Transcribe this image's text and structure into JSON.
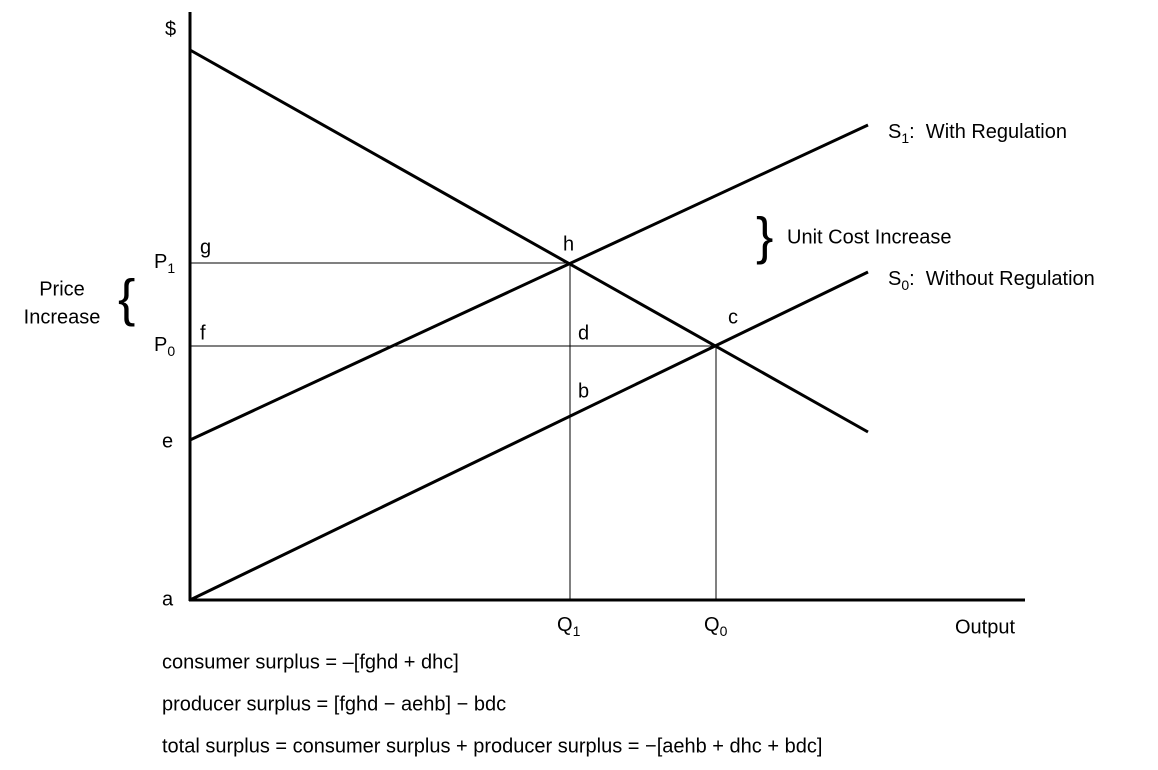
{
  "axis": {
    "y_label": "$",
    "x_label": "Output",
    "origin": "a"
  },
  "points": {
    "g": "g",
    "h": "h",
    "f": "f",
    "d": "d",
    "c": "c",
    "b": "b",
    "e": "e"
  },
  "prices": [
    {
      "base": "P",
      "sub": "1"
    },
    {
      "base": "P",
      "sub": "0"
    }
  ],
  "quantities": [
    {
      "base": "Q",
      "sub": "1"
    },
    {
      "base": "Q",
      "sub": "0"
    }
  ],
  "curves": [
    {
      "base": "S",
      "sub": "1",
      "rest": ":  With Regulation"
    },
    {
      "base": "S",
      "sub": "0",
      "rest": ":  Without Regulation"
    }
  ],
  "annotations": {
    "unit_cost": "Unit Cost Increase",
    "price_increase": [
      "Price",
      "Increase"
    ]
  },
  "formulas": [
    "consumer surplus = –[fghd + dhc]",
    "producer surplus = [fghd − aehb] − bdc",
    "total surplus = consumer surplus + producer surplus = −[aehb + dhc + bdc]"
  ]
}
